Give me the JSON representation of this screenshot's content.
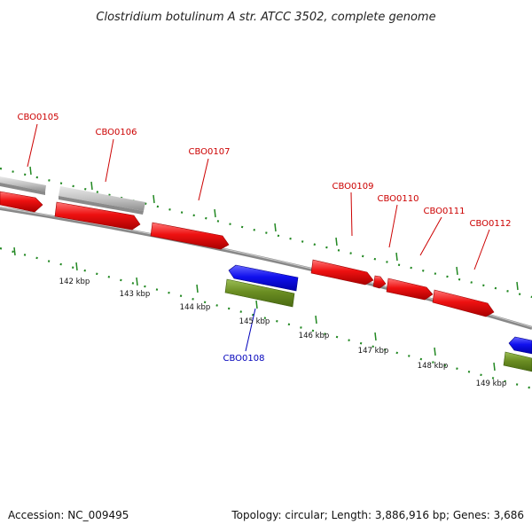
{
  "title": "Clostridium botulinum A str. ATCC 3502, complete genome",
  "footer": {
    "accession": "Accession: NC_009495",
    "summary": "Topology: circular; Length: 3,886,916 bp; Genes: 3,686"
  },
  "colors": {
    "forward_cds": "#ee1111",
    "reverse_cds": "#1111ee",
    "other_feature": "#bbbbbb",
    "reverse_other": "#6b8e23",
    "backbone": "#888888",
    "ticks": "#228822",
    "label_forward": "#cc0000",
    "label_reverse": "#0000bb"
  },
  "gene_labels": {
    "g105": "CBO0105",
    "g106": "CBO0106",
    "g107": "CBO0107",
    "g108": "CBO0108",
    "g109": "CBO0109",
    "g110": "CBO0110",
    "g111": "CBO0111",
    "g112": "CBO0112"
  },
  "kbp_labels": {
    "k142": "142 kbp",
    "k143": "143 kbp",
    "k144": "144 kbp",
    "k145": "145 kbp",
    "k146": "146 kbp",
    "k147": "147 kbp",
    "k148": "148 kbp",
    "k149": "149 kbp"
  }
}
